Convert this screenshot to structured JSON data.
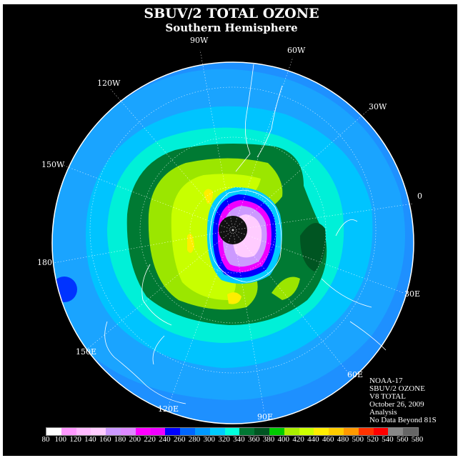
{
  "title": "SBUV/2 TOTAL OZONE",
  "subtitle": "Southern Hemisphere",
  "longitude_labels": [
    {
      "id": "90w",
      "text": "90W"
    },
    {
      "id": "60w",
      "text": "60W"
    },
    {
      "id": "30w",
      "text": "30W"
    },
    {
      "id": "120w",
      "text": "120W"
    },
    {
      "id": "150w",
      "text": "150W"
    },
    {
      "id": "0",
      "text": "0"
    },
    {
      "id": "180",
      "text": "180"
    },
    {
      "id": "30e",
      "text": "30E"
    },
    {
      "id": "150e",
      "text": "150E"
    },
    {
      "id": "60e",
      "text": "60E"
    },
    {
      "id": "120e",
      "text": "120E"
    },
    {
      "id": "90e",
      "text": "90E"
    }
  ],
  "info": {
    "satellite": "NOAA-17",
    "instrument": "SBUV/2 OZONE",
    "product": "V8 TOTAL",
    "date": "October 26, 2009",
    "type": "Analysis",
    "note": "No Data Beyond 81S"
  },
  "colorbar": {
    "labels": [
      "80",
      "100",
      "120",
      "140",
      "160",
      "180",
      "200",
      "220",
      "240",
      "260",
      "280",
      "300",
      "320",
      "340",
      "360",
      "380",
      "400",
      "420",
      "440",
      "460",
      "480",
      "500",
      "520",
      "540",
      "560",
      "580"
    ],
    "colors": [
      "#ffffff",
      "#ff99ff",
      "#ffbbff",
      "#ffccff",
      "#cc99ff",
      "#dd88ff",
      "#ff00ff",
      "#ee00ff",
      "#0000ff",
      "#0066ff",
      "#0099ff",
      "#00ccff",
      "#00ffdd",
      "#007733",
      "#005522",
      "#00cc00",
      "#aaee00",
      "#ccff00",
      "#ffee00",
      "#ffcc00",
      "#ff9900",
      "#ff3300",
      "#ff0000",
      "#888888",
      "#666666"
    ]
  },
  "colors": {
    "background": "#000000",
    "ocean_base": "#1e90ff",
    "polar_night": "#111111"
  }
}
